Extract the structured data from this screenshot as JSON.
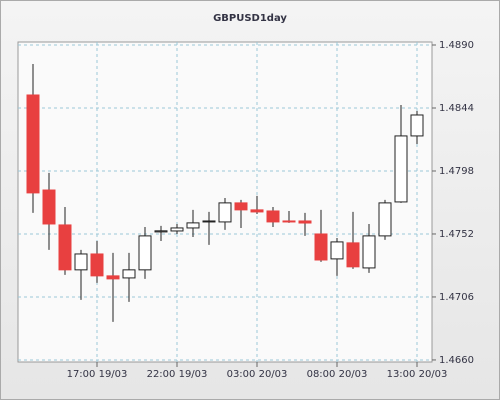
{
  "chart_data": {
    "type": "candlestick",
    "title": "GBPUSD1day",
    "categories": [
      null,
      null,
      null,
      null,
      "17:00 19/03",
      null,
      null,
      null,
      null,
      "22:00 19/03",
      null,
      null,
      null,
      null,
      "03:00 20/03",
      null,
      null,
      null,
      null,
      "08:00 20/03",
      null,
      null,
      null,
      null,
      "13:00 20/03"
    ],
    "open": [
      1.48535,
      1.47841,
      1.47586,
      1.47258,
      1.47374,
      1.47214,
      1.47199,
      1.47258,
      1.47535,
      1.47542,
      1.47564,
      1.47608,
      1.47608,
      1.47747,
      1.47696,
      1.47688,
      1.47615,
      1.47615,
      1.4752,
      1.47338,
      1.47455,
      1.47272,
      1.47506,
      1.47754,
      1.48236
    ],
    "high": [
      1.48761,
      1.47966,
      1.47717,
      1.47404,
      1.47469,
      1.47382,
      1.47382,
      1.47571,
      1.47579,
      1.47593,
      1.47696,
      1.47681,
      1.47783,
      1.47769,
      1.47798,
      1.47717,
      1.47688,
      1.47674,
      1.47696,
      1.47491,
      1.47681,
      1.47593,
      1.47769,
      1.48462,
      1.48418
    ],
    "low": [
      1.47674,
      1.47404,
      1.47221,
      1.47039,
      1.47163,
      1.46878,
      1.47024,
      1.47192,
      1.47469,
      1.4752,
      1.47498,
      1.4744,
      1.4755,
      1.47564,
      1.47666,
      1.47571,
      1.47601,
      1.47506,
      1.47316,
      1.47214,
      1.47265,
      1.47236,
      1.47477,
      1.47747,
      1.48177
    ],
    "close": [
      1.4782,
      1.47593,
      1.47258,
      1.47374,
      1.47214,
      1.47192,
      1.47258,
      1.47506,
      1.47543,
      1.47564,
      1.47601,
      1.47615,
      1.47747,
      1.47696,
      1.47681,
      1.47608,
      1.47608,
      1.476,
      1.4733,
      1.47462,
      1.4728,
      1.47506,
      1.47747,
      1.48236,
      1.48389
    ],
    "up_color": "#ffffff",
    "down_color": "#e84040",
    "ylim": [
      1.46585,
      1.48922
    ],
    "yticks": [
      {
        "value": 1.489,
        "label": "1.4890"
      },
      1.4844,
      1.4798,
      1.4752,
      1.4706,
      {
        "value": 1.466,
        "label": "1.4660"
      }
    ],
    "grid": true
  }
}
